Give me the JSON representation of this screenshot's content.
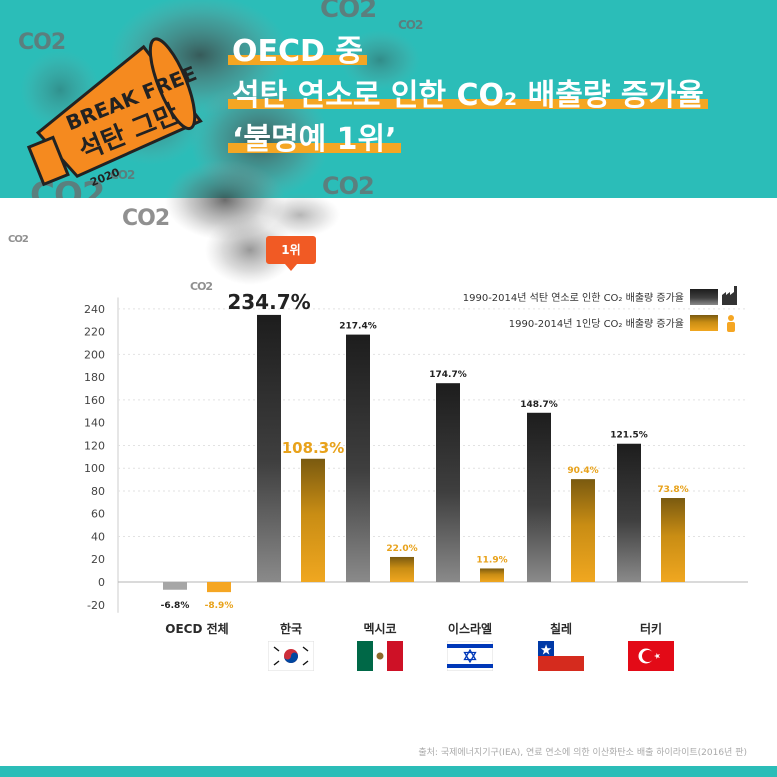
{
  "header": {
    "title_line1": "OECD 중",
    "title_line2": "석탄 연소로 인한 CO₂ 배출량 증가율",
    "title_line3": "‘불명예 1위’",
    "co2_label": "CO2",
    "logo": {
      "line1": "BREAK FREE",
      "line2": "석탄 그만",
      "line3": "2020"
    }
  },
  "badge": "1위",
  "source": "출처: 국제에너지기구(IEA), 연료 연소에 의한 이산화탄소 배출 하이라이트(2016년 판)",
  "colors": {
    "teal": "#2bbdb8",
    "orange": "#f5a623",
    "dark": "#2e2e2e",
    "gray": "#a6a6a6",
    "badge": "#f15a24"
  },
  "chart_data": {
    "type": "bar",
    "categories": [
      "OECD 전체",
      "한국",
      "멕시코",
      "이스라엘",
      "칠레",
      "터키"
    ],
    "series": [
      {
        "name": "1990-2014년 석탄 연소로 인한 CO₂ 배출량 증가율",
        "values": [
          -6.8,
          234.7,
          217.4,
          174.7,
          148.7,
          121.5
        ],
        "labels": [
          "-6.8%",
          "234.7%",
          "217.4%",
          "174.7%",
          "148.7%",
          "121.5%"
        ],
        "icon": "factory-icon"
      },
      {
        "name": "1990-2014년 1인당 CO₂ 배출량 증가율",
        "values": [
          -8.9,
          108.3,
          22.0,
          11.9,
          90.4,
          73.8
        ],
        "labels": [
          "-8.9%",
          "108.3%",
          "22.0%",
          "11.9%",
          "90.4%",
          "73.8%"
        ],
        "icon": "person-icon"
      }
    ],
    "yticks": [
      240,
      220,
      200,
      180,
      160,
      140,
      120,
      100,
      80,
      60,
      40,
      20,
      0,
      -20
    ],
    "ylim": [
      -20,
      250
    ],
    "grid": true,
    "legend_position": "top-right",
    "flags": [
      "",
      "south-korea-flag",
      "mexico-flag",
      "israel-flag",
      "chile-flag",
      "turkey-flag"
    ]
  }
}
